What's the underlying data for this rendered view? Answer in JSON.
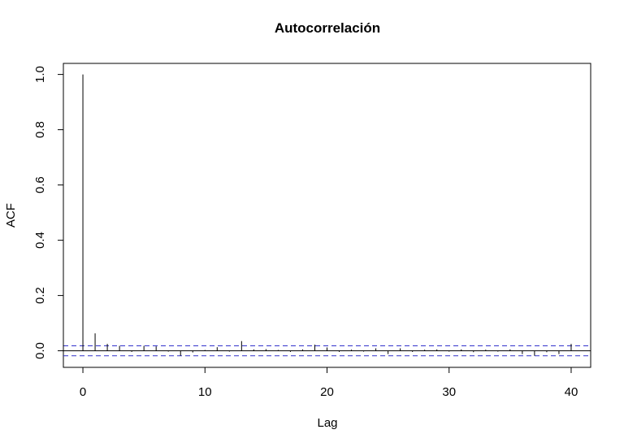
{
  "chart_data": {
    "type": "bar",
    "title": "Autocorrelación",
    "xlabel": "Lag",
    "ylabel": "ACF",
    "xlim": [
      -1.6,
      41.6
    ],
    "ylim": [
      -0.06,
      1.04
    ],
    "x_ticks": [
      0,
      10,
      20,
      30,
      40
    ],
    "x_tick_labels": [
      "0",
      "10",
      "20",
      "30",
      "40"
    ],
    "y_ticks": [
      0.0,
      0.2,
      0.4,
      0.6,
      0.8,
      1.0
    ],
    "y_tick_labels": [
      "0.0",
      "0.2",
      "0.4",
      "0.6",
      "0.8",
      "1.0"
    ],
    "confidence_band": [
      -0.018,
      0.018
    ],
    "colors": {
      "bars": "#000000",
      "confidence": "#3333cc",
      "zero_line": "#000000"
    },
    "lags": [
      0,
      1,
      2,
      3,
      4,
      5,
      6,
      7,
      8,
      9,
      10,
      11,
      12,
      13,
      14,
      15,
      16,
      17,
      18,
      19,
      20,
      21,
      22,
      23,
      24,
      25,
      26,
      27,
      28,
      29,
      30,
      31,
      32,
      33,
      34,
      35,
      36,
      37,
      38,
      39,
      40
    ],
    "acf": [
      1.0,
      0.063,
      0.025,
      0.018,
      -0.004,
      0.018,
      0.016,
      -0.003,
      -0.018,
      -0.006,
      0.003,
      0.013,
      -0.003,
      0.035,
      0.005,
      0.006,
      0.003,
      -0.004,
      0.005,
      0.022,
      0.012,
      -0.004,
      0.004,
      -0.003,
      0.009,
      -0.012,
      0.009,
      -0.004,
      0.004,
      0.005,
      -0.003,
      0.005,
      -0.005,
      0.004,
      -0.003,
      0.005,
      -0.012,
      -0.018,
      -0.005,
      -0.012,
      0.025
    ]
  }
}
